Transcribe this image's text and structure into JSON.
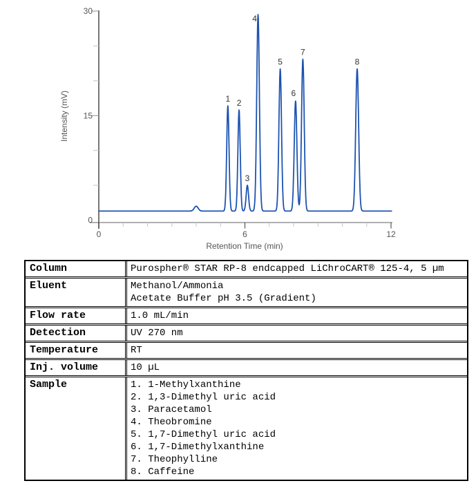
{
  "chart_data": {
    "type": "line",
    "xlabel": "Retention Time (min)",
    "ylabel": "Intensity (mV)",
    "xlim": [
      0,
      12
    ],
    "ylim": [
      0,
      30
    ],
    "x_major_ticks": [
      0,
      6,
      12
    ],
    "x_minor_step": 1,
    "y_major_ticks": [
      0,
      15,
      30
    ],
    "y_minor_ticks": [
      5,
      10,
      20,
      25
    ],
    "grid": false,
    "legend": "none",
    "line_color": "#1d53b0",
    "baseline_mv": 1.3,
    "system_peak": {
      "rt_min": 4.0,
      "apex_mv": 2.0,
      "sigma_min": 0.08
    },
    "peaks": [
      {
        "label": "1",
        "rt_min": 5.3,
        "apex_mv": 16.4,
        "sigma_min": 0.048
      },
      {
        "label": "2",
        "rt_min": 5.76,
        "apex_mv": 15.8,
        "sigma_min": 0.048
      },
      {
        "label": "3",
        "rt_min": 6.1,
        "apex_mv": 5.0,
        "sigma_min": 0.05
      },
      {
        "label": "4",
        "rt_min": 6.54,
        "apex_mv": 29.5,
        "sigma_min": 0.055,
        "label_offset": [
          -5,
          10
        ]
      },
      {
        "label": "5",
        "rt_min": 7.45,
        "apex_mv": 21.7,
        "sigma_min": 0.053
      },
      {
        "label": "6",
        "rt_min": 8.08,
        "apex_mv": 17.1,
        "sigma_min": 0.055,
        "label_offset": [
          -3,
          -7
        ]
      },
      {
        "label": "7",
        "rt_min": 8.38,
        "apex_mv": 23.1,
        "sigma_min": 0.055
      },
      {
        "label": "8",
        "rt_min": 10.61,
        "apex_mv": 21.7,
        "sigma_min": 0.06
      }
    ]
  },
  "table": {
    "rows": [
      {
        "label": "Column",
        "lines": [
          "Purospher® STAR RP-8 endcapped LiChroCART® 125-4, 5 µm"
        ]
      },
      {
        "label": "Eluent",
        "lines": [
          "Methanol/Ammonia",
          "Acetate Buffer pH 3.5 (Gradient)"
        ]
      },
      {
        "label": "Flow rate",
        "lines": [
          "1.0 mL/min"
        ]
      },
      {
        "label": "Detection",
        "lines": [
          "UV 270 nm"
        ]
      },
      {
        "label": "Temperature",
        "lines": [
          "RT"
        ]
      },
      {
        "label": "Inj. volume",
        "lines": [
          "10 µL"
        ]
      },
      {
        "label": "Sample",
        "lines": [
          "1. 1-Methylxanthine",
          "2. 1,3-Dimethyl uric acid",
          "3. Paracetamol",
          "4. Theobromine",
          "5. 1,7-Dimethyl uric acid",
          "6. 1,7-Dimethylxanthine",
          "7. Theophylline",
          "8. Caffeine"
        ]
      }
    ]
  },
  "colors": {
    "trace": "#1d53b0",
    "x_axis": "#b0b0b0",
    "y_axis": "#3d3d3d",
    "tick_minor": "#c4c4c4",
    "tick_major_y": "#999999",
    "axis_text": "#555555",
    "peak_label_text": "#333333"
  }
}
